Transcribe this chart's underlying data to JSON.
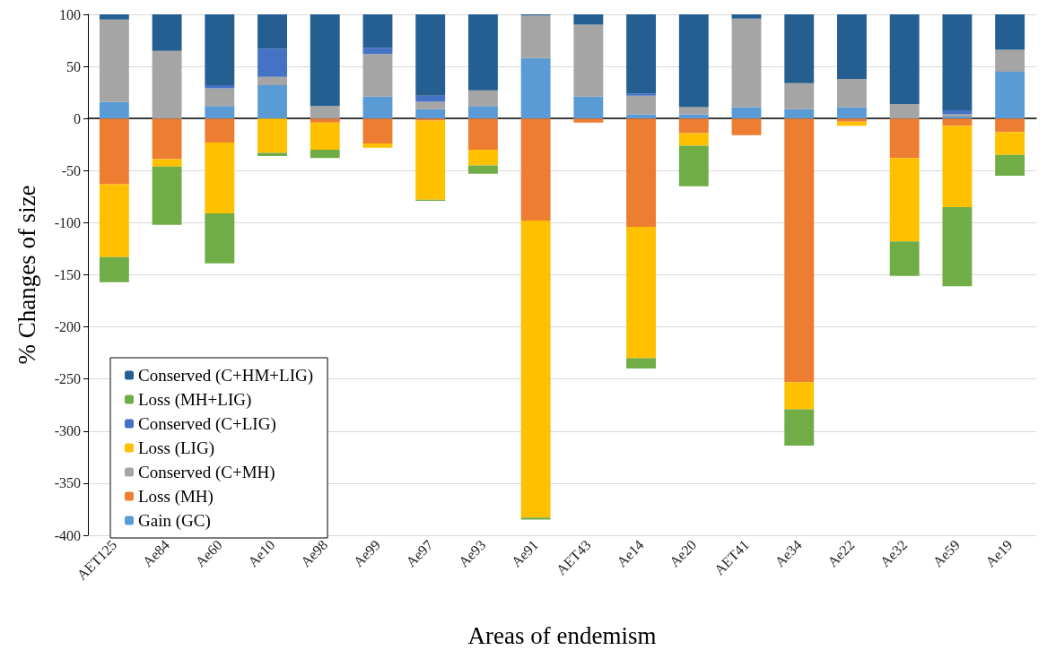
{
  "chart_data": {
    "type": "bar",
    "stacked": true,
    "xlabel": "Areas of endemism",
    "ylabel": "% Changes of size",
    "categories": [
      "AET125",
      "Ae84",
      "Ae60",
      "Ae10",
      "Ae98",
      "Ae99",
      "Ae97",
      "Ae93",
      "Ae91",
      "AET43",
      "Ae14",
      "Ae20",
      "AET41",
      "Ae34",
      "Ae22",
      "Ae32",
      "Ae59",
      "Ae19"
    ],
    "series": [
      {
        "name": "Gain (GC)",
        "color": "#5b9bd5",
        "values": [
          16,
          0,
          12,
          32,
          0,
          21,
          9,
          12,
          58,
          21,
          4,
          4,
          11,
          9,
          11,
          0,
          2,
          45
        ]
      },
      {
        "name": "Loss (MH)",
        "color": "#ed7d31",
        "values": [
          -63,
          -39,
          -23,
          0,
          -4,
          -24,
          -2,
          -30,
          -98,
          -4,
          -104,
          -14,
          -16,
          -253,
          -3,
          -38,
          -7,
          -13
        ]
      },
      {
        "name": "Conserved (C+MH)",
        "color": "#a5a5a5",
        "values": [
          79,
          65,
          17,
          8,
          12,
          41,
          7,
          15,
          41,
          69,
          18,
          7,
          85,
          25,
          27,
          14,
          2,
          21
        ]
      },
      {
        "name": "Loss (LIG)",
        "color": "#ffc000",
        "values": [
          -70,
          -7,
          -68,
          -33,
          -26,
          -4,
          -76,
          -15,
          -285,
          0,
          -126,
          -12,
          0,
          -26,
          -4,
          -80,
          -78,
          -22
        ]
      },
      {
        "name": "Conserved (C+LIG)",
        "color": "#4472c4",
        "values": [
          0,
          0,
          3,
          27,
          0,
          6,
          6,
          0,
          0,
          0,
          2,
          0,
          0,
          0,
          0,
          0,
          4,
          0
        ]
      },
      {
        "name": "Loss (MH+LIG)",
        "color": "#70ad47",
        "values": [
          -24,
          -56,
          -48,
          -3,
          -8,
          0,
          -1,
          -8,
          -2,
          0,
          -10,
          -39,
          0,
          -35,
          0,
          -33,
          -76,
          -20
        ]
      },
      {
        "name": "Conserved (C+HM+LIG)",
        "color": "#255e91",
        "values": [
          5,
          35,
          68,
          33,
          88,
          32,
          78,
          73,
          1,
          10,
          76,
          89,
          4,
          66,
          62,
          86,
          92,
          34
        ]
      }
    ],
    "ylim": [
      -400,
      100
    ],
    "yticks": [
      -400,
      -350,
      -300,
      -250,
      -200,
      -150,
      -100,
      -50,
      0,
      50,
      100
    ],
    "grid": "y",
    "legend": "bottom left"
  }
}
